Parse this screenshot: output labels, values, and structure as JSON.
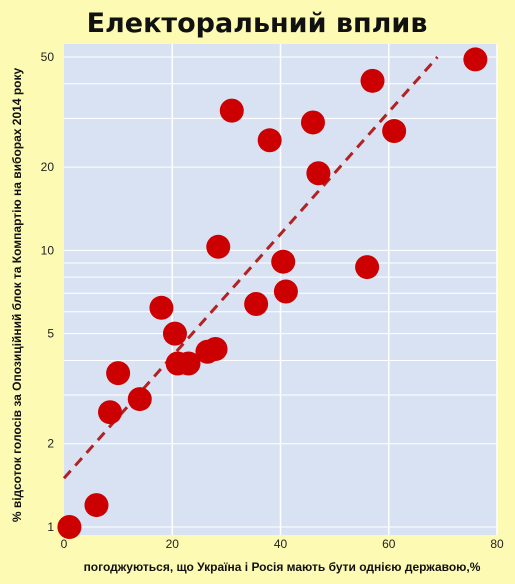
{
  "chart_data": {
    "type": "scatter",
    "title": "Електоральний вплив",
    "xlabel": "погоджуються, що Україна і Росія мають бути однією державою,%",
    "ylabel": "% відсоток голосів за Опозиційний блок та Компартію на виборах 2014 року",
    "x_scale": "linear",
    "y_scale": "log",
    "xlim": [
      0,
      80
    ],
    "ylim": [
      1,
      50
    ],
    "x_ticks": [
      0,
      20,
      40,
      60,
      80
    ],
    "x_tick_labels": [
      "0",
      "20",
      "40",
      "60",
      "80"
    ],
    "y_ticks": [
      1,
      2,
      5,
      10,
      20,
      50
    ],
    "y_tick_labels": [
      "1",
      "2",
      "5",
      "10",
      "20",
      "50"
    ],
    "grid": true,
    "legend": "none",
    "colors": {
      "background": "#fdfbb3",
      "plot_area": "#d9e2f3",
      "gridline": "#ffffff",
      "point": "#cc0000",
      "trendline": "#b22222"
    },
    "series": [
      {
        "type": "scatter",
        "points": [
          {
            "x": 1,
            "y": 1.0
          },
          {
            "x": 6,
            "y": 1.2
          },
          {
            "x": 8.5,
            "y": 2.6
          },
          {
            "x": 10,
            "y": 3.6
          },
          {
            "x": 14,
            "y": 2.9
          },
          {
            "x": 18,
            "y": 6.2
          },
          {
            "x": 20.5,
            "y": 5.0
          },
          {
            "x": 21,
            "y": 3.9
          },
          {
            "x": 23,
            "y": 3.9
          },
          {
            "x": 26.5,
            "y": 4.3
          },
          {
            "x": 28,
            "y": 4.4
          },
          {
            "x": 28.5,
            "y": 10.3
          },
          {
            "x": 31,
            "y": 32
          },
          {
            "x": 35.5,
            "y": 6.4
          },
          {
            "x": 38,
            "y": 25
          },
          {
            "x": 40.5,
            "y": 9.1
          },
          {
            "x": 41,
            "y": 7.1
          },
          {
            "x": 46,
            "y": 29
          },
          {
            "x": 47,
            "y": 19
          },
          {
            "x": 56,
            "y": 8.7
          },
          {
            "x": 57,
            "y": 41
          },
          {
            "x": 61,
            "y": 27
          },
          {
            "x": 76,
            "y": 49
          }
        ]
      },
      {
        "type": "trendline",
        "style": "dashed",
        "points": [
          {
            "x": 0,
            "y": 1.5
          },
          {
            "x": 69,
            "y": 50
          }
        ]
      }
    ]
  }
}
